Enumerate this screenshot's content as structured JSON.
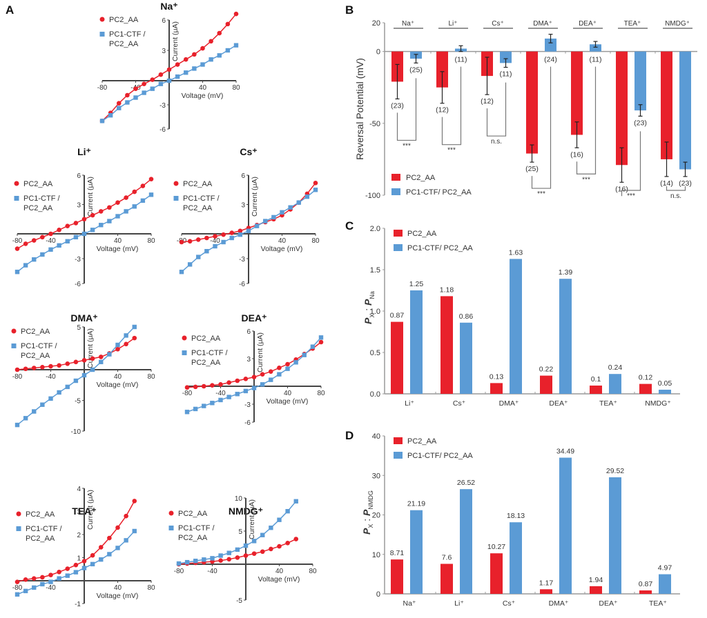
{
  "colors": {
    "red": "#e8212b",
    "blue": "#5b9bd5",
    "axis": "#444444",
    "text": "#333333"
  },
  "legend": {
    "series_a": "PC2_AA",
    "series_b_iv": [
      "PC1-CTF /",
      "PC2_AA"
    ],
    "series_b": "PC1-CTF/ PC2_AA"
  },
  "chart_data": [
    {
      "panel": "A",
      "type": "line",
      "title": "Na⁺",
      "xlabel": "Voltage (mV)",
      "ylabel": "Current (μA)",
      "xlim": [
        -80,
        80
      ],
      "ylim": [
        -6,
        6
      ],
      "xticks": [
        "-80",
        "-40",
        "40",
        "80"
      ],
      "yticks": [
        "6",
        "3",
        "-3",
        "-6"
      ],
      "x": [
        -80,
        -70,
        -60,
        -50,
        -40,
        -30,
        -20,
        -10,
        0,
        10,
        20,
        30,
        40,
        50,
        60,
        70,
        80
      ],
      "series": [
        {
          "name": "PC2_AA",
          "values": [
            -5.0,
            -4.0,
            -2.8,
            -1.8,
            -1.0,
            -0.4,
            0.1,
            0.6,
            1.1,
            1.6,
            2.1,
            2.6,
            3.2,
            3.9,
            4.7,
            5.6,
            6.6
          ]
        },
        {
          "name": "PC1-CTF / PC2_AA",
          "values": [
            -5.0,
            -4.3,
            -3.4,
            -2.7,
            -2.1,
            -1.5,
            -1.0,
            -0.4,
            0.0,
            0.4,
            0.8,
            1.2,
            1.6,
            2.1,
            2.5,
            3.0,
            3.5
          ]
        }
      ]
    },
    {
      "panel": "A",
      "type": "line",
      "title": "Li⁺",
      "xlabel": "Voltage (mV)",
      "ylabel": "Current (μA)",
      "xlim": [
        -80,
        80
      ],
      "ylim": [
        -6,
        6
      ],
      "xticks": [
        "-80",
        "-40",
        "40",
        "80"
      ],
      "yticks": [
        "6",
        "3",
        "-3",
        "-6"
      ],
      "x": [
        -80,
        -70,
        -60,
        -50,
        -40,
        -30,
        -20,
        -10,
        0,
        10,
        20,
        30,
        40,
        50,
        60,
        70,
        80
      ],
      "series": [
        {
          "name": "PC2_AA",
          "values": [
            -1.8,
            -1.2,
            -0.8,
            -0.4,
            0.0,
            0.4,
            0.8,
            1.1,
            1.5,
            1.9,
            2.3,
            2.7,
            3.2,
            3.7,
            4.3,
            4.9,
            5.6
          ]
        },
        {
          "name": "PC1-CTF / PC2_AA",
          "values": [
            -4.6,
            -3.8,
            -3.1,
            -2.5,
            -1.9,
            -1.4,
            -0.9,
            -0.4,
            0.0,
            0.4,
            0.9,
            1.3,
            1.8,
            2.3,
            2.8,
            3.4,
            4.0
          ]
        }
      ]
    },
    {
      "panel": "A",
      "type": "line",
      "title": "Cs⁺",
      "xlabel": "Voltage (mV)",
      "ylabel": "Current (μA)",
      "xlim": [
        -80,
        80
      ],
      "ylim": [
        -6,
        6
      ],
      "xticks": [
        "-80",
        "-40",
        "40",
        "80"
      ],
      "yticks": [
        "6",
        "3",
        "-3",
        "-6"
      ],
      "x": [
        -80,
        -70,
        -60,
        -50,
        -40,
        -30,
        -20,
        -10,
        0,
        10,
        20,
        30,
        40,
        50,
        60,
        70,
        80
      ],
      "series": [
        {
          "name": "PC2_AA",
          "values": [
            -1.0,
            -0.9,
            -0.7,
            -0.5,
            -0.3,
            -0.1,
            0.1,
            0.3,
            0.6,
            0.9,
            1.2,
            1.5,
            1.9,
            2.5,
            3.2,
            4.1,
            5.2
          ]
        },
        {
          "name": "PC1-CTF / PC2_AA",
          "values": [
            -4.6,
            -3.7,
            -2.8,
            -2.1,
            -1.5,
            -1.0,
            -0.5,
            -0.1,
            0.3,
            0.8,
            1.3,
            1.7,
            2.2,
            2.7,
            3.2,
            3.8,
            4.5
          ]
        }
      ]
    },
    {
      "panel": "A",
      "type": "line",
      "title": "DMA⁺",
      "xlabel": "Voltage (mV)",
      "ylabel": "Current (μA)",
      "xlim": [
        -80,
        80
      ],
      "ylim": [
        -10,
        5
      ],
      "xticks": [
        "-80",
        "-40",
        "40",
        "80"
      ],
      "yticks": [
        "5",
        "-5",
        "-10"
      ],
      "x": [
        -80,
        -70,
        -60,
        -50,
        -40,
        -30,
        -20,
        -10,
        0,
        10,
        20,
        30,
        40,
        50,
        60
      ],
      "series": [
        {
          "name": "PC2_AA",
          "values": [
            0.0,
            0.1,
            0.2,
            0.3,
            0.4,
            0.5,
            0.7,
            0.9,
            1.1,
            1.3,
            1.5,
            1.9,
            2.4,
            3.0,
            3.7
          ]
        },
        {
          "name": "PC1-CTF / PC2_AA",
          "values": [
            -9.0,
            -7.9,
            -6.8,
            -5.7,
            -4.7,
            -3.7,
            -2.8,
            -1.8,
            -0.9,
            0.0,
            0.9,
            1.8,
            2.9,
            4.0,
            5.0
          ]
        }
      ]
    },
    {
      "panel": "A",
      "type": "line",
      "title": "DEA⁺",
      "xlabel": "Voltage (mV)",
      "ylabel": "Current (μA)",
      "xlim": [
        -80,
        80
      ],
      "ylim": [
        -6,
        6
      ],
      "xticks": [
        "-80",
        "-40",
        "40",
        "80"
      ],
      "yticks": [
        "6",
        "3",
        "-3",
        "-6"
      ],
      "x": [
        -80,
        -70,
        -60,
        -50,
        -40,
        -30,
        -20,
        -10,
        0,
        10,
        20,
        30,
        40,
        50,
        60,
        70,
        80
      ],
      "series": [
        {
          "name": "PC2_AA",
          "values": [
            -0.2,
            -0.1,
            0.0,
            0.1,
            0.2,
            0.4,
            0.6,
            0.8,
            1.0,
            1.3,
            1.6,
            2.0,
            2.4,
            2.9,
            3.5,
            4.1,
            4.8
          ]
        },
        {
          "name": "PC1-CTF / PC2_AA",
          "values": [
            -4.3,
            -3.8,
            -3.3,
            -2.8,
            -2.3,
            -1.8,
            -1.3,
            -0.8,
            -0.3,
            0.2,
            0.7,
            1.3,
            1.9,
            2.6,
            3.4,
            4.3,
            5.3
          ]
        }
      ]
    },
    {
      "panel": "A",
      "type": "line",
      "title": "TEA⁺",
      "xlabel": "Voltage (mV)",
      "ylabel": "Current (μA)",
      "xlim": [
        -80,
        80
      ],
      "ylim": [
        -1,
        4
      ],
      "xticks": [
        "-80",
        "-40",
        "40",
        "80"
      ],
      "yticks": [
        "4",
        "3",
        "2",
        "1",
        "-1"
      ],
      "x": [
        -80,
        -70,
        -60,
        -50,
        -40,
        -30,
        -20,
        -10,
        0,
        10,
        20,
        30,
        40,
        50,
        60
      ],
      "series": [
        {
          "name": "PC2_AA",
          "values": [
            -0.05,
            0.05,
            0.1,
            0.15,
            0.25,
            0.38,
            0.52,
            0.68,
            0.85,
            1.1,
            1.45,
            1.85,
            2.3,
            2.8,
            3.45
          ]
        },
        {
          "name": "PC1-CTF / PC2_AA",
          "values": [
            -0.6,
            -0.45,
            -0.3,
            -0.15,
            -0.05,
            0.1,
            0.22,
            0.37,
            0.55,
            0.72,
            0.92,
            1.15,
            1.42,
            1.75,
            2.15
          ]
        }
      ]
    },
    {
      "panel": "A",
      "type": "line",
      "title": "NMDG⁺",
      "xlabel": "Voltage (mV)",
      "ylabel": "Current (μA)",
      "xlim": [
        -80,
        80
      ],
      "ylim": [
        -5,
        10
      ],
      "xticks": [
        "-80",
        "-40",
        "40",
        "80"
      ],
      "yticks": [
        "10",
        "5",
        "-5"
      ],
      "x": [
        -80,
        -70,
        -60,
        -50,
        -40,
        -30,
        -20,
        -10,
        0,
        10,
        20,
        30,
        40,
        50,
        60
      ],
      "series": [
        {
          "name": "PC2_AA",
          "values": [
            0.0,
            0.1,
            0.2,
            0.3,
            0.4,
            0.55,
            0.75,
            1.0,
            1.3,
            1.6,
            1.9,
            2.3,
            2.7,
            3.2,
            3.8
          ]
        },
        {
          "name": "PC1-CTF / PC2_AA",
          "values": [
            0.1,
            0.3,
            0.5,
            0.7,
            0.9,
            1.3,
            1.7,
            2.2,
            2.8,
            3.5,
            4.4,
            5.5,
            6.7,
            8.0,
            9.5
          ]
        }
      ]
    },
    {
      "panel": "B",
      "type": "bar",
      "ylabel": "Reversal Potential (mV)",
      "ylim": [
        -100,
        20
      ],
      "yticks": [
        20,
        0,
        -50,
        -100
      ],
      "categories": [
        "Na⁺",
        "Li⁺",
        "Cs⁺",
        "DMA⁺",
        "DEA⁺",
        "TEA⁺",
        "NMDG⁺"
      ],
      "series": [
        {
          "name": "PC2_AA",
          "values": [
            -21,
            -25,
            -17,
            -71,
            -58,
            -79,
            -75
          ],
          "err": [
            12,
            11,
            13,
            6,
            9,
            12,
            12
          ],
          "n": [
            "(23)",
            "(12)",
            "(12)",
            "(25)",
            "(16)",
            "(16)",
            "(14)"
          ]
        },
        {
          "name": "PC1-CTF/ PC2_AA",
          "values": [
            -5,
            2,
            -8,
            9,
            5,
            -41,
            -82
          ],
          "err": [
            3,
            2,
            3,
            3,
            2,
            4,
            5
          ],
          "n": [
            "(25)",
            "(11)",
            "(11)",
            "(24)",
            "(11)",
            "(23)",
            "(23)"
          ]
        }
      ],
      "significance": [
        "***",
        "***",
        "n.s.",
        "***",
        "***",
        "***",
        "n.s."
      ],
      "legend": "bottom-left"
    },
    {
      "panel": "C",
      "type": "bar",
      "ylabel": "P_X : P_Na",
      "ylim": [
        0,
        2.0
      ],
      "yticks": [
        "0.0",
        "0.5",
        "1.0",
        "1.5",
        "2.0"
      ],
      "categories": [
        "Li⁺",
        "Cs⁺",
        "DMA⁺",
        "DEA⁺",
        "TEA⁺",
        "NMDG⁺"
      ],
      "series": [
        {
          "name": "PC2_AA",
          "values": [
            0.87,
            1.18,
            0.13,
            0.22,
            0.1,
            0.12
          ],
          "labels": [
            "0.87",
            "1.18",
            "0.13",
            "0.22",
            "0.1",
            "0.12"
          ]
        },
        {
          "name": "PC1-CTF/ PC2_AA",
          "values": [
            1.25,
            0.86,
            1.63,
            1.39,
            0.24,
            0.05
          ],
          "labels": [
            "1.25",
            "0.86",
            "1.63",
            "1.39",
            "0.24",
            "0.05"
          ]
        }
      ],
      "legend": "top-left"
    },
    {
      "panel": "D",
      "type": "bar",
      "ylabel": "P_X : P_NMDG",
      "ylim": [
        0,
        40
      ],
      "yticks": [
        "0",
        "10",
        "20",
        "30",
        "40"
      ],
      "categories": [
        "Na⁺",
        "Li⁺",
        "Cs⁺",
        "DMA⁺",
        "DEA⁺",
        "TEA⁺"
      ],
      "series": [
        {
          "name": "PC2_AA",
          "values": [
            8.71,
            7.6,
            10.27,
            1.17,
            1.94,
            0.87
          ],
          "labels": [
            "8.71",
            "7.6",
            "10.27",
            "1.17",
            "1.94",
            "0.87"
          ]
        },
        {
          "name": "PC1-CTF/ PC2_AA",
          "values": [
            21.19,
            26.52,
            18.13,
            34.49,
            29.52,
            4.97
          ],
          "labels": [
            "21.19",
            "26.52",
            "18.13",
            "34.49",
            "29.52",
            "4.97"
          ]
        }
      ],
      "legend": "top-left"
    }
  ],
  "panel_letters": [
    "A",
    "B",
    "C",
    "D"
  ]
}
